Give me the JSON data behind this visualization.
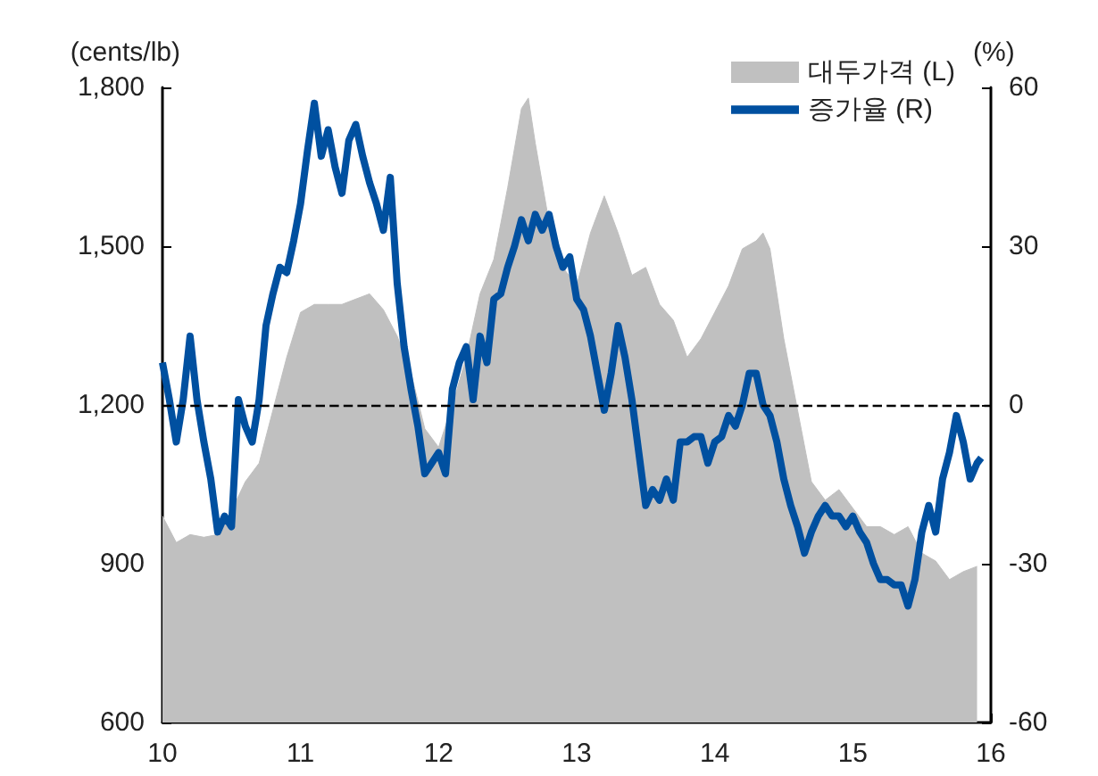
{
  "chart_data": {
    "type": "line",
    "ylabel": "(cents/lb)",
    "y2label": "(%)",
    "xlim": [
      10,
      16
    ],
    "xticks": [
      10,
      11,
      12,
      13,
      14,
      15,
      16
    ],
    "ylim": [
      600,
      1800
    ],
    "yticks": [
      {
        "value": 600,
        "label": "600"
      },
      {
        "value": 900,
        "label": "900"
      },
      {
        "value": 1200,
        "label": "1,200"
      },
      {
        "value": 1500,
        "label": "1,500"
      },
      {
        "value": 1800,
        "label": "1,800"
      }
    ],
    "y2lim": [
      -60,
      60
    ],
    "y2ticks": [
      -60,
      -30,
      0,
      30,
      60
    ],
    "legend": "top right",
    "grid": false,
    "ref_lines": [
      {
        "axis": "y2",
        "value": 0,
        "color": "#000000",
        "line_style": "dashed"
      }
    ],
    "series": [
      {
        "name": "대두가격 (L)",
        "type": "area",
        "color": "#c0c0c0",
        "x": [
          10.0,
          10.1,
          10.2,
          10.3,
          10.4,
          10.5,
          10.6,
          10.7,
          10.8,
          10.9,
          11.0,
          11.1,
          11.2,
          11.3,
          11.4,
          11.5,
          11.6,
          11.7,
          11.8,
          11.9,
          12.0,
          12.1,
          12.2,
          12.3,
          12.4,
          12.5,
          12.6,
          12.65,
          12.7,
          12.8,
          12.9,
          13.0,
          13.1,
          13.2,
          13.3,
          13.4,
          13.5,
          13.6,
          13.7,
          13.8,
          13.9,
          14.0,
          14.1,
          14.2,
          14.3,
          14.35,
          14.4,
          14.5,
          14.6,
          14.7,
          14.8,
          14.9,
          15.0,
          15.1,
          15.2,
          15.3,
          15.4,
          15.5,
          15.6,
          15.7,
          15.8,
          15.9
        ],
        "values": [
          990,
          940,
          955,
          950,
          955,
          1000,
          1055,
          1090,
          1190,
          1290,
          1375,
          1390,
          1390,
          1390,
          1400,
          1410,
          1380,
          1330,
          1260,
          1155,
          1120,
          1200,
          1290,
          1410,
          1475,
          1610,
          1760,
          1780,
          1695,
          1545,
          1460,
          1425,
          1525,
          1595,
          1525,
          1445,
          1460,
          1390,
          1360,
          1290,
          1325,
          1375,
          1425,
          1495,
          1510,
          1525,
          1495,
          1325,
          1190,
          1055,
          1020,
          1040,
          1005,
          970,
          970,
          955,
          970,
          920,
          905,
          870,
          885,
          895
        ]
      },
      {
        "name": "증가율 (R)",
        "axis": "y2",
        "color": "#0050a0",
        "x": [
          10.0,
          10.05,
          10.1,
          10.15,
          10.2,
          10.25,
          10.3,
          10.35,
          10.4,
          10.45,
          10.5,
          10.55,
          10.6,
          10.65,
          10.7,
          10.75,
          10.8,
          10.85,
          10.9,
          10.95,
          11.0,
          11.05,
          11.1,
          11.15,
          11.2,
          11.25,
          11.3,
          11.35,
          11.4,
          11.45,
          11.5,
          11.55,
          11.6,
          11.65,
          11.7,
          11.75,
          11.8,
          11.85,
          11.9,
          11.95,
          12.0,
          12.05,
          12.1,
          12.15,
          12.2,
          12.25,
          12.3,
          12.35,
          12.4,
          12.45,
          12.5,
          12.55,
          12.6,
          12.65,
          12.7,
          12.75,
          12.8,
          12.85,
          12.9,
          12.95,
          13.0,
          13.05,
          13.1,
          13.15,
          13.2,
          13.25,
          13.3,
          13.35,
          13.4,
          13.45,
          13.5,
          13.55,
          13.6,
          13.65,
          13.7,
          13.75,
          13.8,
          13.85,
          13.9,
          13.95,
          14.0,
          14.05,
          14.1,
          14.15,
          14.2,
          14.25,
          14.3,
          14.35,
          14.4,
          14.45,
          14.5,
          14.55,
          14.6,
          14.65,
          14.7,
          14.75,
          14.8,
          14.85,
          14.9,
          14.95,
          15.0,
          15.05,
          15.1,
          15.15,
          15.2,
          15.25,
          15.3,
          15.35,
          15.4,
          15.45,
          15.5,
          15.55,
          15.6,
          15.65,
          15.7,
          15.75,
          15.8,
          15.85,
          15.9,
          15.93
        ],
        "values": [
          8,
          1,
          -7,
          1,
          13,
          1,
          -7,
          -14,
          -24,
          -21,
          -23,
          1,
          -4,
          -7,
          1,
          15,
          21,
          26,
          25,
          31,
          38,
          48,
          57,
          47,
          52,
          45,
          40,
          50,
          53,
          47,
          42,
          38,
          33,
          43,
          23,
          11,
          3,
          -4,
          -13,
          -11,
          -9,
          -13,
          3,
          8,
          11,
          1,
          13,
          8,
          20,
          21,
          26,
          30,
          35,
          31,
          36,
          33,
          36,
          30,
          26,
          28,
          20,
          18,
          13,
          6,
          -1,
          6,
          15,
          9,
          1,
          -9,
          -19,
          -16,
          -18,
          -14,
          -18,
          -7,
          -7,
          -6,
          -6,
          -11,
          -7,
          -6,
          -2,
          -4,
          0,
          6,
          6,
          0,
          -2,
          -7,
          -14,
          -19,
          -23,
          -28,
          -24,
          -21,
          -19,
          -21,
          -21,
          -23,
          -21,
          -24,
          -26,
          -30,
          -33,
          -33,
          -34,
          -34,
          -38,
          -33,
          -24,
          -19,
          -24,
          -14,
          -9,
          -2,
          -7,
          -14,
          -11,
          -10
        ]
      }
    ]
  }
}
